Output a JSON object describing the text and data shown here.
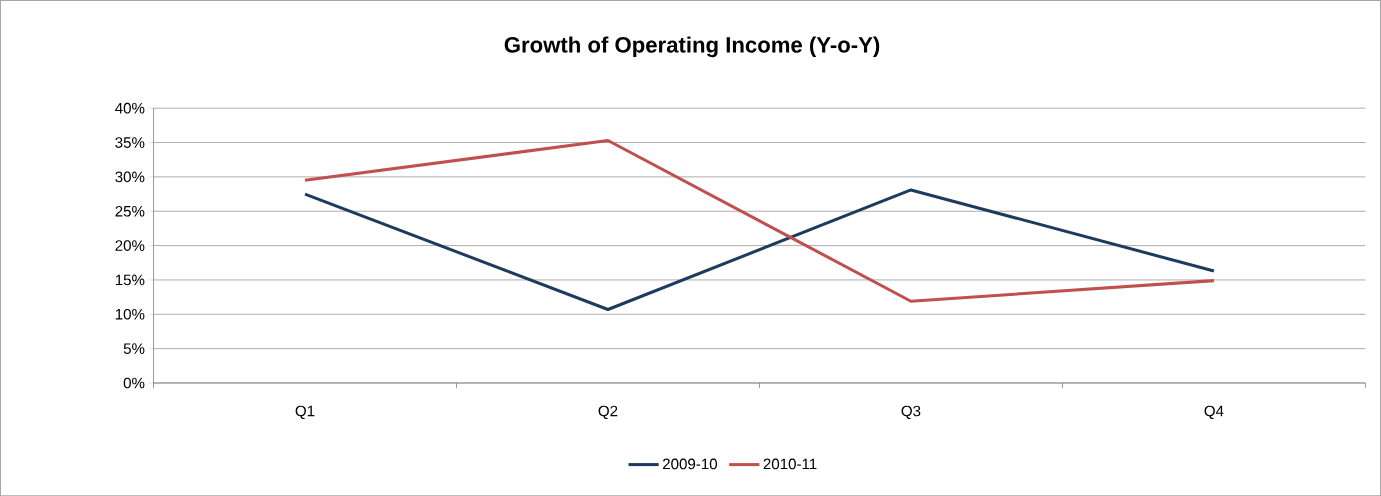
{
  "chart_data": {
    "type": "line",
    "title": "Growth of Operating Income (Y-o-Y)",
    "categories": [
      "Q1",
      "Q2",
      "Q3",
      "Q4"
    ],
    "series": [
      {
        "name": "2009-10",
        "color": "#1f3a5f",
        "values": [
          27.5,
          10.7,
          28.1,
          16.3
        ]
      },
      {
        "name": "2010-11",
        "color": "#c0504d",
        "values": [
          29.5,
          35.3,
          11.9,
          14.9
        ]
      }
    ],
    "ylim": [
      0,
      40
    ],
    "yticks": [
      {
        "value": 0,
        "label": "0%"
      },
      {
        "value": 5,
        "label": "5%"
      },
      {
        "value": 10,
        "label": "10%"
      },
      {
        "value": 15,
        "label": "15%"
      },
      {
        "value": 20,
        "label": "20%"
      },
      {
        "value": 25,
        "label": "25%"
      },
      {
        "value": 30,
        "label": "30%"
      },
      {
        "value": 35,
        "label": "35%"
      },
      {
        "value": 40,
        "label": "40%"
      }
    ],
    "grid": "y",
    "legend": "bottom"
  }
}
